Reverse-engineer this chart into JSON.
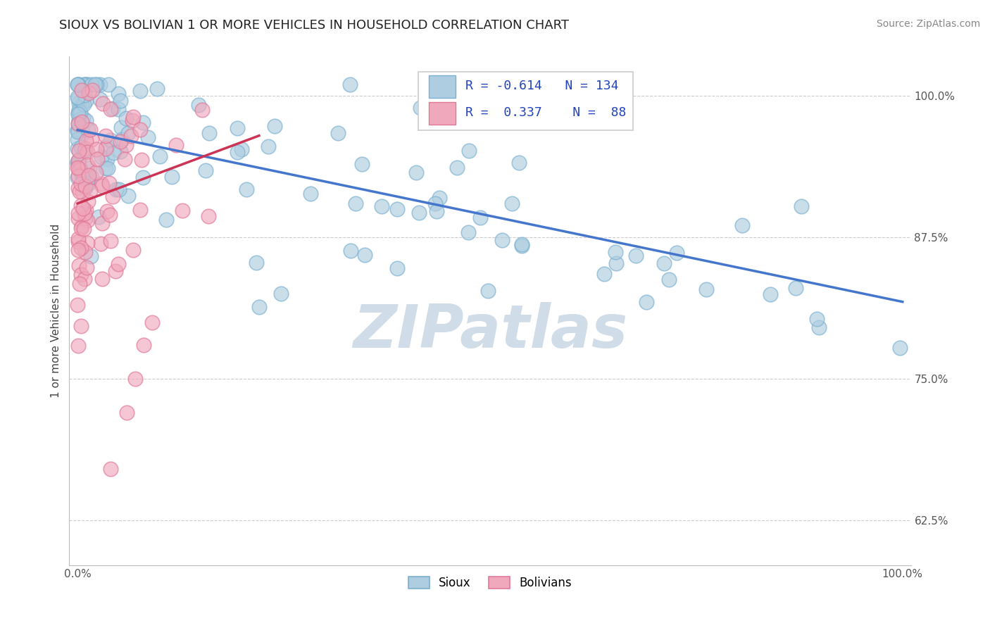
{
  "title": "SIOUX VS BOLIVIAN 1 OR MORE VEHICLES IN HOUSEHOLD CORRELATION CHART",
  "source_text": "Source: ZipAtlas.com",
  "ylabel": "1 or more Vehicles in Household",
  "xlim": [
    -0.01,
    1.01
  ],
  "ylim": [
    0.585,
    1.035
  ],
  "yticks": [
    0.625,
    0.75,
    0.875,
    1.0
  ],
  "ytick_labels": [
    "62.5%",
    "75.0%",
    "87.5%",
    "100.0%"
  ],
  "xticks": [
    0.0,
    1.0
  ],
  "xtick_labels": [
    "0.0%",
    "100.0%"
  ],
  "legend_r_sioux": "-0.614",
  "legend_n_sioux": "134",
  "legend_r_bolivian": "0.337",
  "legend_n_bolivian": "88",
  "sioux_color": "#aecde0",
  "bolivian_color": "#f0a8bc",
  "sioux_edge_color": "#7ab0d0",
  "bolivian_edge_color": "#e07898",
  "sioux_line_color": "#4477cc",
  "bolivian_line_color": "#cc3355",
  "watermark_color": "#d0dce8",
  "background_color": "#ffffff",
  "grid_color": "#cccccc",
  "title_color": "#222222",
  "source_color": "#888888",
  "tick_color": "#555555",
  "legend_text_color": "#2244bb",
  "sioux_line_y0": 0.97,
  "sioux_line_y1": 0.818,
  "bolivian_line_x0": 0.0,
  "bolivian_line_x1": 0.22,
  "bolivian_line_y0": 0.905,
  "bolivian_line_y1": 0.965
}
